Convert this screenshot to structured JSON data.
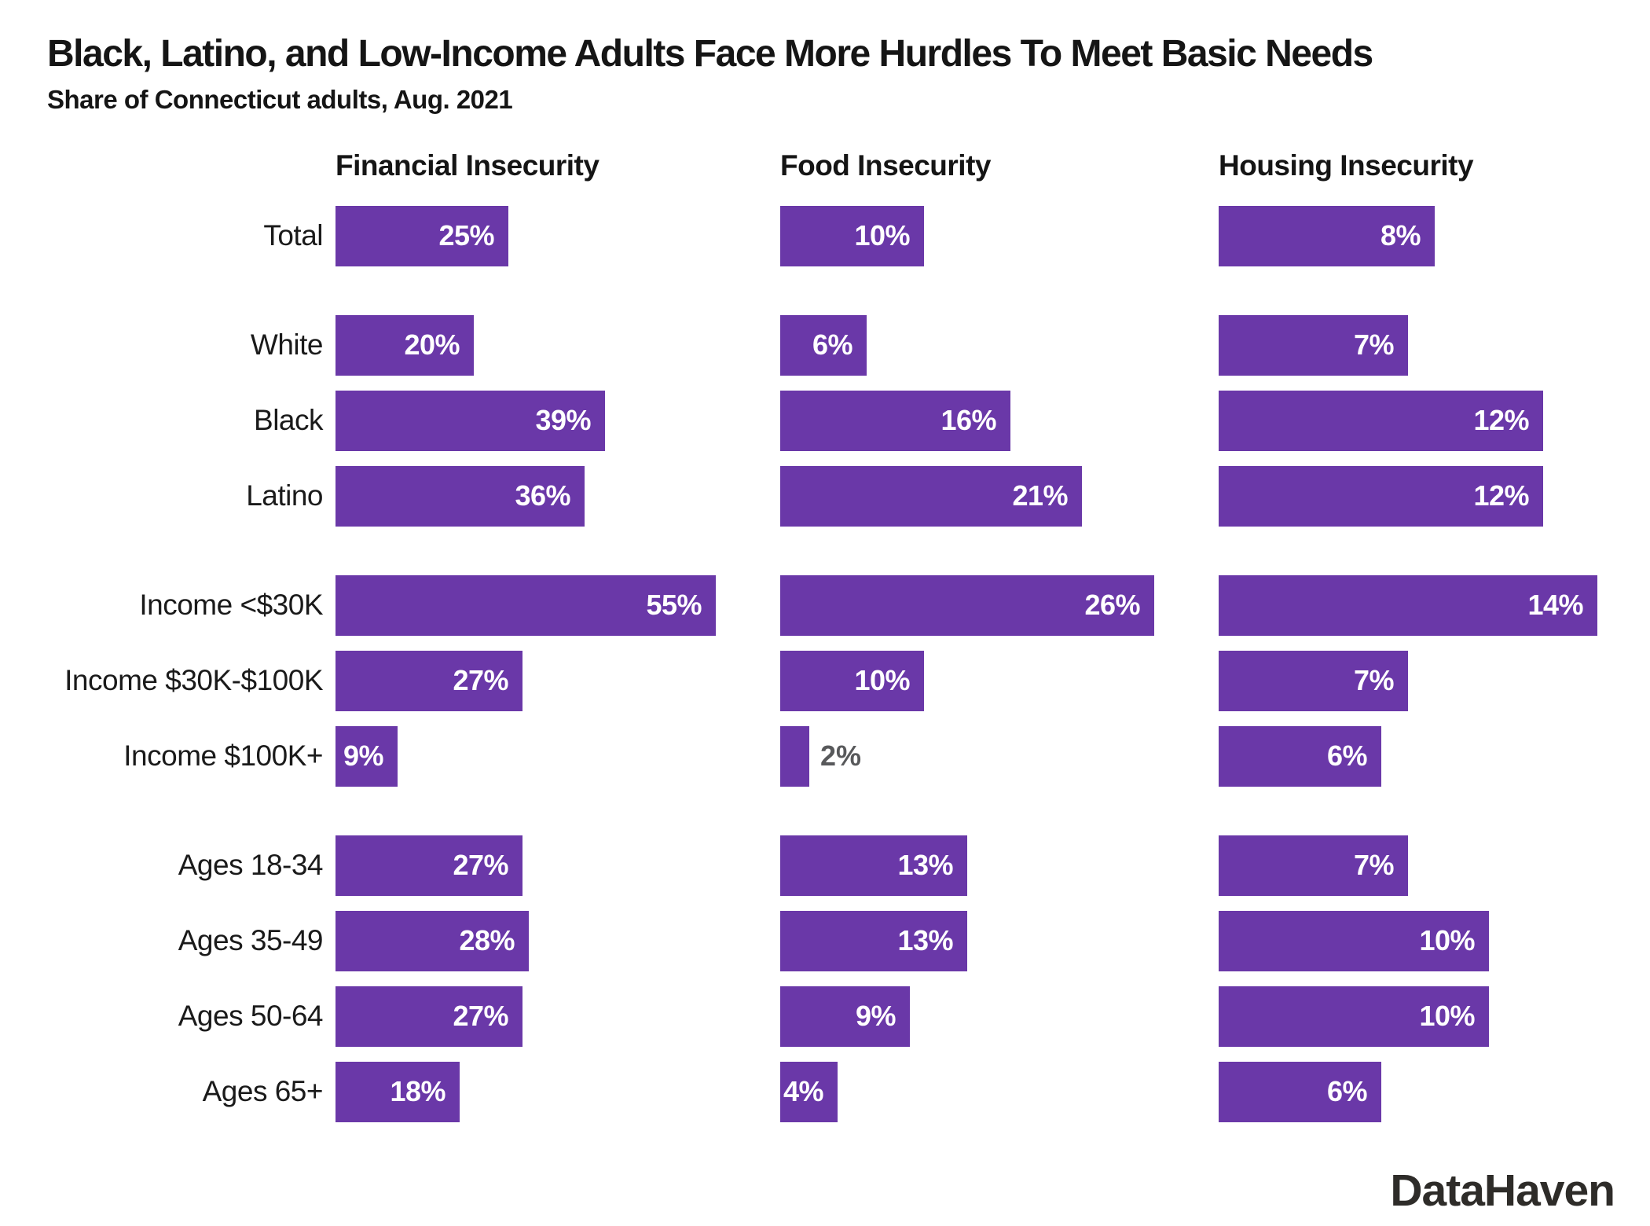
{
  "title": "Black, Latino, and Low-Income Adults Face More Hurdles To Meet Basic Needs",
  "subtitle": "Share of Connecticut adults, Aug. 2021",
  "brand": "DataHaven",
  "colors": {
    "bar": "#6a38a8",
    "text": "#1a1a1a",
    "value_label_inside": "#ffffff",
    "value_label_outside": "#58595b"
  },
  "chart_data": {
    "type": "bar",
    "orientation": "horizontal",
    "value_suffix": "%",
    "grid": false,
    "legend": "none",
    "categories": [
      "Total",
      "White",
      "Black",
      "Latino",
      "Income <$30K",
      "Income $30K-$100K",
      "Income $100K+",
      "Ages 18-34",
      "Ages 35-49",
      "Ages 50-64",
      "Ages 65+"
    ],
    "group_starts": [
      1,
      4,
      7
    ],
    "series": [
      {
        "name": "Financial Insecurity",
        "axis_max": 55,
        "values": [
          25,
          20,
          39,
          36,
          55,
          27,
          9,
          27,
          28,
          27,
          18
        ]
      },
      {
        "name": "Food Insecurity",
        "axis_max": 26,
        "values": [
          10,
          6,
          16,
          21,
          26,
          10,
          2,
          13,
          13,
          9,
          4
        ]
      },
      {
        "name": "Housing Insecurity",
        "axis_max": 14,
        "values": [
          8,
          7,
          12,
          12,
          14,
          7,
          6,
          7,
          10,
          10,
          6
        ]
      }
    ]
  }
}
